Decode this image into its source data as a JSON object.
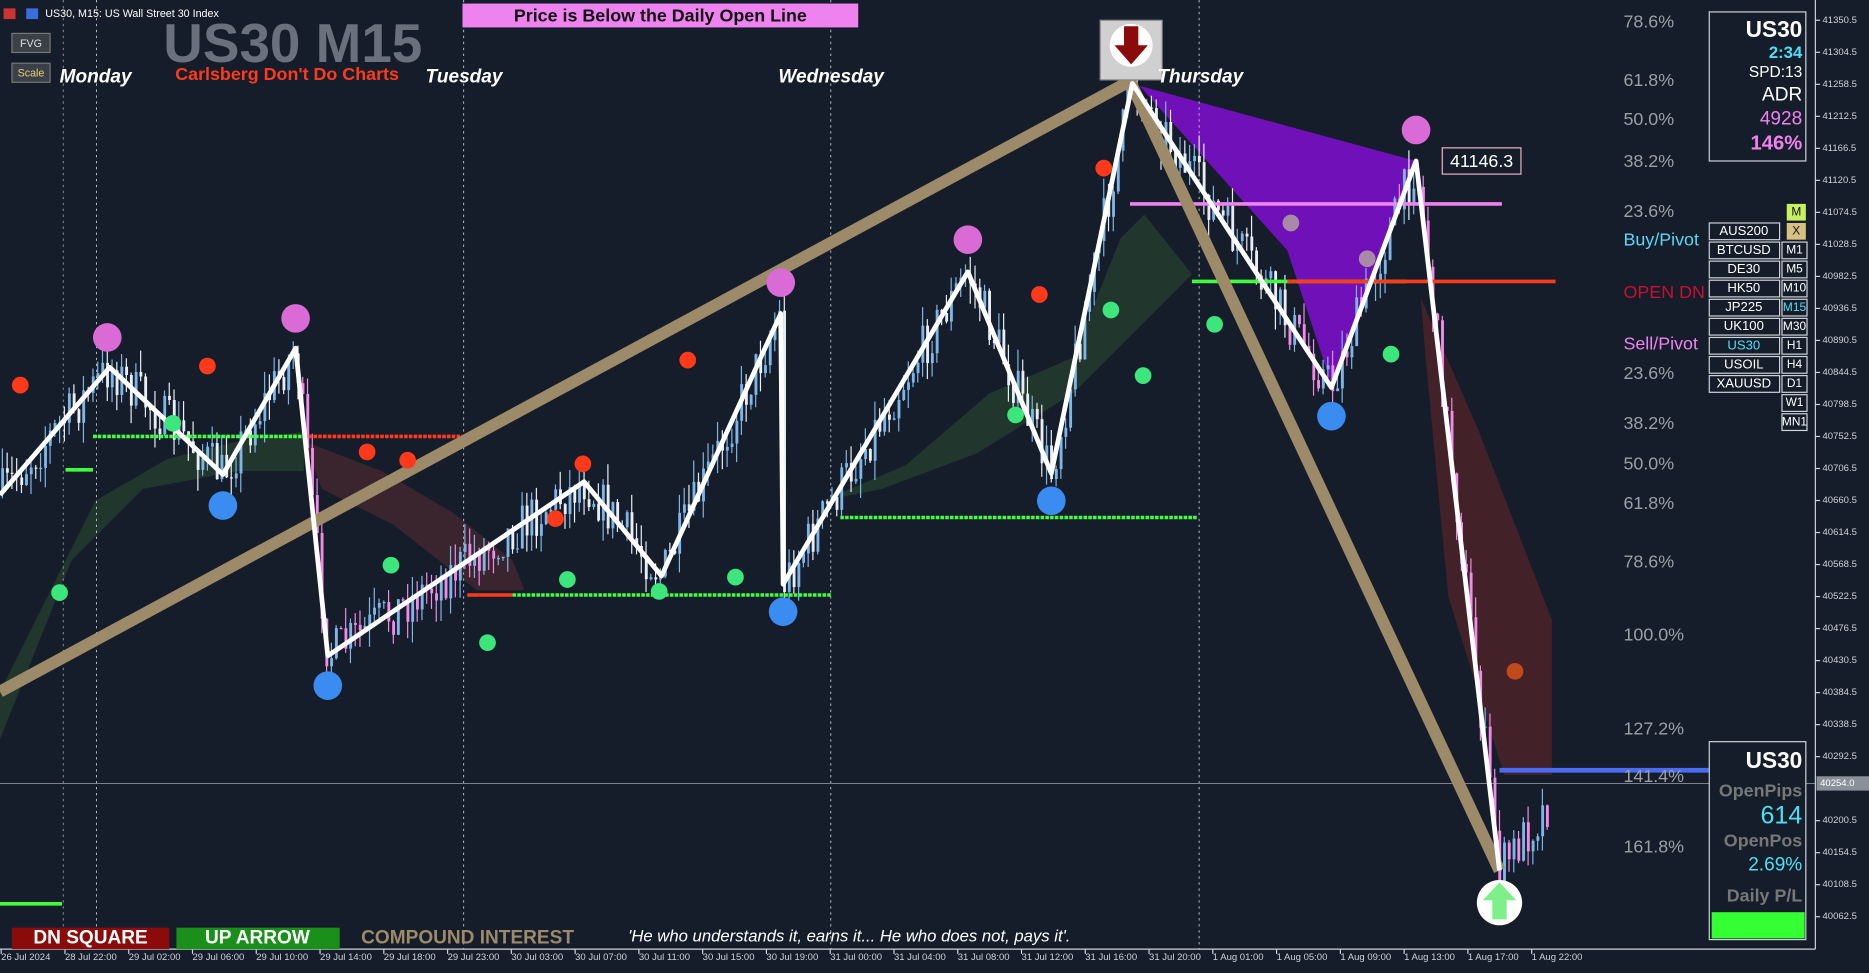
{
  "header": {
    "symbol_info": "US30, M15:  US Wall Street 30 Index",
    "banner": "Price is Below the Daily Open Line",
    "watermark": "US30 M15",
    "subtitle": "Carlsberg Don't Do Charts"
  },
  "buttons": [
    "FVG",
    "Scale"
  ],
  "days": [
    "Monday",
    "Tuesday",
    "Wednesday",
    "Thursday"
  ],
  "fib_levels": [
    "78.6%",
    "61.8%",
    "50.0%",
    "38.2%",
    "23.6%",
    "Buy/Pivot",
    "OPEN DN",
    "Sell/Pivot",
    "23.6%",
    "38.2%",
    "50.0%",
    "61.8%",
    "78.6%",
    "100.0%",
    "127.2%",
    "141.4%",
    "161.8%"
  ],
  "price_label": "41146.3",
  "price_axis": [
    "41350.5",
    "41304.5",
    "41258.5",
    "41212.5",
    "41166.5",
    "41120.5",
    "41074.5",
    "41028.5",
    "40982.5",
    "40936.5",
    "40890.5",
    "40844.5",
    "40798.5",
    "40752.5",
    "40706.5",
    "40660.5",
    "40614.5",
    "40568.5",
    "40522.5",
    "40476.5",
    "40430.5",
    "40384.5",
    "40338.5",
    "40292.5",
    "40200.5",
    "40154.5",
    "40108.5",
    "40062.5"
  ],
  "current_price": "40254.0",
  "time_axis": [
    "26 Jul 2024",
    "28 Jul 22:00",
    "29 Jul 02:00",
    "29 Jul 06:00",
    "29 Jul 10:00",
    "29 Jul 14:00",
    "29 Jul 18:00",
    "29 Jul 23:00",
    "30 Jul 03:00",
    "30 Jul 07:00",
    "30 Jul 11:00",
    "30 Jul 15:00",
    "30 Jul 19:00",
    "31 Jul 00:00",
    "31 Jul 04:00",
    "31 Jul 08:00",
    "31 Jul 12:00",
    "31 Jul 16:00",
    "31 Jul 20:00",
    "1 Aug 01:00",
    "1 Aug 05:00",
    "1 Aug 09:00",
    "1 Aug 13:00",
    "1 Aug 17:00",
    "1 Aug 22:00"
  ],
  "top_panel": {
    "symbol": "US30",
    "time": "2:34",
    "spread": "SPD:13",
    "adr_label": "ADR",
    "adr_value": "4928",
    "adr_pct": "146%"
  },
  "symbol_list": [
    "AUS200",
    "BTCUSD",
    "DE30",
    "HK50",
    "JP225",
    "UK100",
    "US30",
    "USOIL",
    "XAUUSD"
  ],
  "mode_button": "M",
  "close_button": "X",
  "timeframes": [
    "M1",
    "M5",
    "M10",
    "M15",
    "M30",
    "H1",
    "H4",
    "D1",
    "W1",
    "MN1"
  ],
  "bottom_panel": {
    "symbol": "US30",
    "open_pips_label": "OpenPips",
    "open_pips": "614",
    "open_pos_label": "OpenPos",
    "open_pos": "2.69%",
    "daily_pl_label": "Daily P/L"
  },
  "footer": {
    "dn_square": "DN SQUARE",
    "up_arrow": "UP ARROW",
    "compound": "COMPOUND INTEREST",
    "quote": "'He who understands it, earns it... He who does not, pays it'."
  }
}
